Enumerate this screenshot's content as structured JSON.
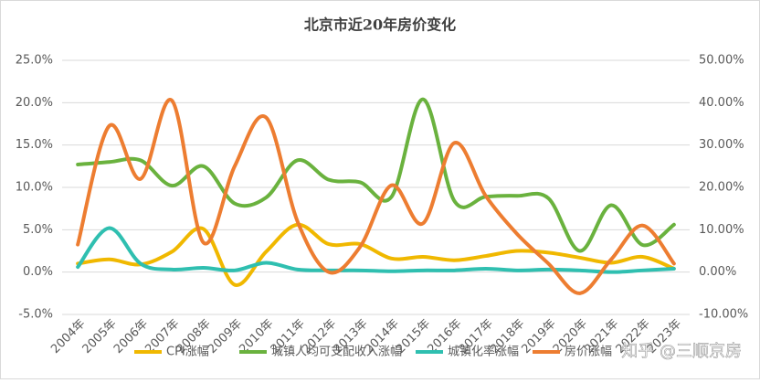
{
  "chart_data": {
    "type": "line",
    "title": "北京市近20年房价变化",
    "categories": [
      "2004年",
      "2005年",
      "2006年",
      "2007年",
      "2008年",
      "2009年",
      "2010年",
      "2011年",
      "2012年",
      "2013年",
      "2014年",
      "2015年",
      "2016年",
      "2017年",
      "2018年",
      "2019年",
      "2020年",
      "2021年",
      "2022年",
      "2023年"
    ],
    "series": [
      {
        "name": "CPI涨幅",
        "color": "#f0b800",
        "values": [
          1.0,
          1.5,
          0.9,
          2.4,
          5.1,
          -1.5,
          2.4,
          5.6,
          3.3,
          3.3,
          1.6,
          1.8,
          1.4,
          1.9,
          2.5,
          2.3,
          1.7,
          1.1,
          1.8,
          0.4
        ]
      },
      {
        "name": "城镇人均可支配收入涨幅",
        "color": "#6ab23e",
        "values": [
          12.7,
          13.0,
          13.2,
          10.2,
          12.5,
          8.1,
          8.8,
          13.2,
          10.9,
          10.6,
          8.9,
          20.4,
          8.4,
          8.9,
          9.0,
          8.7,
          2.5,
          7.9,
          3.2,
          5.6
        ]
      },
      {
        "name": "城镇化率涨幅",
        "color": "#2fbfb0",
        "values": [
          0.6,
          5.2,
          1.0,
          0.3,
          0.5,
          0.2,
          1.1,
          0.3,
          0.2,
          0.2,
          0.1,
          0.2,
          0.2,
          0.4,
          0.2,
          0.3,
          0.2,
          0.0,
          0.2,
          0.4
        ]
      },
      {
        "name": "房价涨幅",
        "color": "#ed7d31",
        "axis": "y2",
        "values": [
          6.5,
          34.5,
          22,
          40.5,
          7,
          25,
          36.5,
          12,
          0,
          6,
          20.5,
          11.5,
          30.5,
          18,
          9,
          2,
          -5,
          3,
          11,
          2
        ]
      }
    ],
    "ylim": [
      -5,
      25
    ],
    "yticks": [
      {
        "value": -5,
        "label": "-5.0%"
      },
      {
        "value": 0,
        "label": "0.0%"
      },
      {
        "value": 5,
        "label": "5.0%"
      },
      {
        "value": 10,
        "label": "10.0%"
      },
      {
        "value": 15,
        "label": "15.0%"
      },
      {
        "value": 20,
        "label": "20.0%"
      },
      {
        "value": 25,
        "label": "25.0%"
      }
    ],
    "y2lim": [
      -10,
      50
    ],
    "y2ticks": [
      {
        "value": -10,
        "label": "-10.00%"
      },
      {
        "value": 0,
        "label": "0.00%"
      },
      {
        "value": 10,
        "label": "10.00%"
      },
      {
        "value": 20,
        "label": "20.00%"
      },
      {
        "value": 30,
        "label": "30.00%"
      },
      {
        "value": 40,
        "label": "40.00%"
      },
      {
        "value": 50,
        "label": "50.00%"
      }
    ],
    "grid": true,
    "legend": "bottom",
    "watermark": "知乎 @三顺京房"
  }
}
